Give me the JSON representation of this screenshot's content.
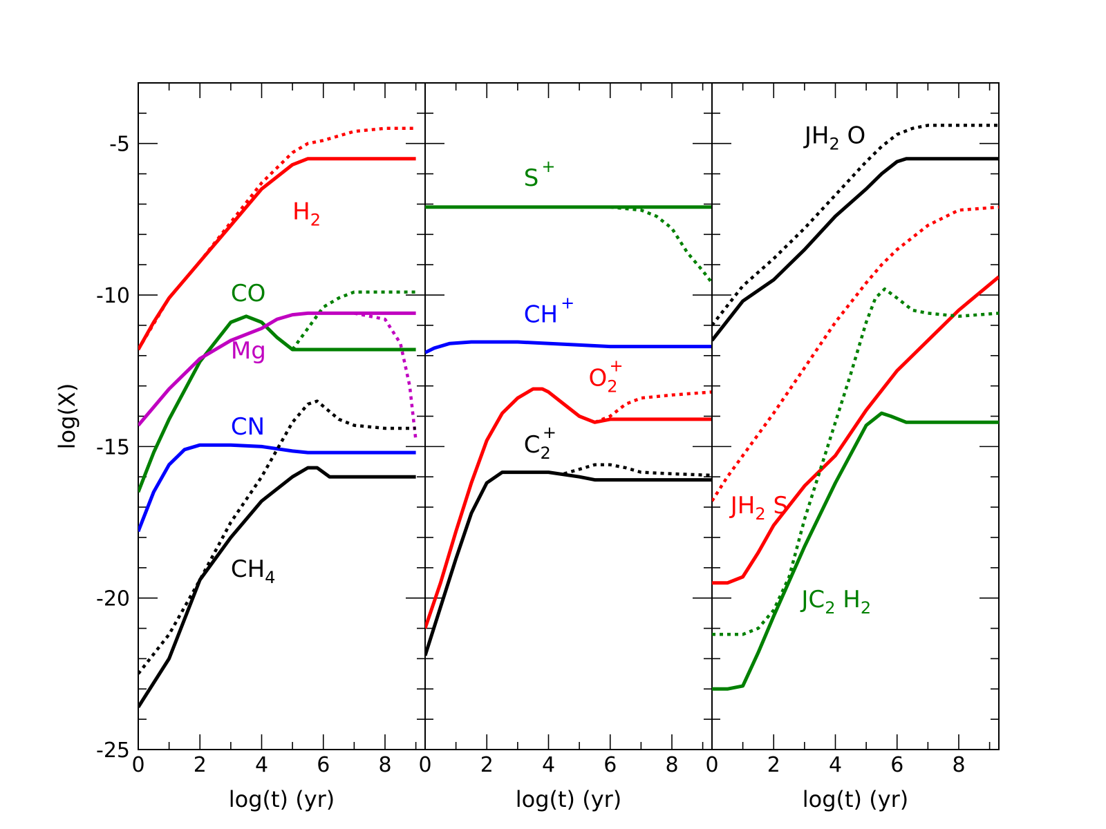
{
  "chart_data": [
    {
      "type": "line",
      "panel": "left",
      "xlabel": "log(t) (yr)",
      "ylabel": "log(X)",
      "xlim": [
        0,
        9.3
      ],
      "ylim": [
        -25,
        -3
      ],
      "xticks": [
        "0",
        "2",
        "4",
        "6",
        "8"
      ],
      "yticks": [
        "-5",
        "-10",
        "-15",
        "-20",
        "-25"
      ],
      "series": [
        {
          "name": "H₂",
          "label": {
            "main": "H",
            "sub": "2",
            "sup": ""
          },
          "color": "#ff0000",
          "style": "solid",
          "x": [
            0,
            0.5,
            1,
            2,
            3,
            4,
            5,
            5.5,
            6,
            7,
            8,
            9
          ],
          "y": [
            -11.8,
            -10.9,
            -10.1,
            -8.9,
            -7.7,
            -6.5,
            -5.7,
            -5.5,
            -5.5,
            -5.5,
            -5.5,
            -5.5
          ]
        },
        {
          "name": "H₂ dotted",
          "color": "#ff0000",
          "style": "dotted",
          "x": [
            0,
            1,
            2,
            3,
            4,
            5,
            5.5,
            6,
            7,
            8,
            9
          ],
          "y": [
            -11.8,
            -10.1,
            -8.9,
            -7.6,
            -6.3,
            -5.3,
            -5.0,
            -4.9,
            -4.6,
            -4.5,
            -4.5
          ]
        },
        {
          "name": "CO",
          "label": {
            "main": "CO",
            "sub": "",
            "sup": ""
          },
          "color": "#008000",
          "style": "solid",
          "x": [
            0,
            0.5,
            1,
            2,
            3,
            3.5,
            4,
            4.5,
            5,
            5.5,
            6,
            7,
            8,
            9
          ],
          "y": [
            -16.5,
            -15.2,
            -14.1,
            -12.2,
            -10.9,
            -10.7,
            -10.9,
            -11.4,
            -11.8,
            -11.8,
            -11.8,
            -11.8,
            -11.8,
            -11.8
          ]
        },
        {
          "name": "CO dotted",
          "color": "#008000",
          "style": "dotted",
          "x": [
            5,
            5.5,
            6,
            6.5,
            7,
            7.5,
            8,
            9
          ],
          "y": [
            -11.8,
            -11.1,
            -10.4,
            -10.1,
            -9.9,
            -9.9,
            -9.9,
            -9.9
          ]
        },
        {
          "name": "Mg",
          "label": {
            "main": "Mg",
            "sub": "",
            "sup": ""
          },
          "color": "#c000c0",
          "style": "solid",
          "x": [
            0,
            1,
            2,
            3,
            4,
            4.5,
            5,
            5.5,
            6,
            7,
            8,
            9
          ],
          "y": [
            -14.3,
            -13.1,
            -12.1,
            -11.5,
            -11.1,
            -10.8,
            -10.65,
            -10.6,
            -10.6,
            -10.6,
            -10.6,
            -10.6
          ]
        },
        {
          "name": "Mg dotted",
          "color": "#c000c0",
          "style": "dotted",
          "x": [
            7,
            8,
            8.5,
            8.8,
            9
          ],
          "y": [
            -10.6,
            -10.8,
            -11.6,
            -13.0,
            -14.8
          ]
        },
        {
          "name": "CN",
          "label": {
            "main": "CN",
            "sub": "",
            "sup": ""
          },
          "color": "#0000ff",
          "style": "solid",
          "x": [
            0,
            0.5,
            1,
            1.5,
            2,
            3,
            4,
            5,
            5.5,
            6,
            7,
            8,
            9
          ],
          "y": [
            -17.8,
            -16.5,
            -15.6,
            -15.1,
            -14.95,
            -14.95,
            -15.0,
            -15.15,
            -15.2,
            -15.2,
            -15.2,
            -15.2,
            -15.2
          ]
        },
        {
          "name": "CH₄",
          "label": {
            "main": "CH",
            "sub": "4",
            "sup": ""
          },
          "color": "#000000",
          "style": "solid",
          "x": [
            0,
            0.5,
            1,
            1.5,
            2,
            3,
            4,
            5,
            5.5,
            5.8,
            6.2,
            7,
            8,
            9
          ],
          "y": [
            -23.6,
            -22.8,
            -22.0,
            -20.7,
            -19.4,
            -18.0,
            -16.8,
            -16.0,
            -15.7,
            -15.7,
            -16.0,
            -16.0,
            -16.0,
            -16.0
          ]
        },
        {
          "name": "CH₄ dotted",
          "color": "#000000",
          "style": "dotted",
          "x": [
            0,
            1,
            2,
            3,
            4,
            5,
            5.5,
            5.8,
            6.5,
            7,
            8,
            9
          ],
          "y": [
            -22.5,
            -21.2,
            -19.4,
            -17.5,
            -16.0,
            -14.2,
            -13.6,
            -13.5,
            -14.1,
            -14.3,
            -14.4,
            -14.4
          ]
        }
      ]
    },
    {
      "type": "line",
      "panel": "middle",
      "xlabel": "log(t) (yr)",
      "xlim": [
        0,
        9.3
      ],
      "ylim": [
        -25,
        -3
      ],
      "xticks": [
        "0",
        "2",
        "4",
        "6",
        "8"
      ],
      "series": [
        {
          "name": "S⁺",
          "label": {
            "main": "S",
            "sub": "",
            "sup": "+"
          },
          "color": "#008000",
          "style": "solid",
          "x": [
            0,
            2,
            4,
            6,
            8,
            9.3
          ],
          "y": [
            -7.1,
            -7.1,
            -7.1,
            -7.1,
            -7.1,
            -7.1
          ]
        },
        {
          "name": "S⁺ dotted",
          "color": "#008000",
          "style": "dotted",
          "x": [
            6,
            7,
            7.5,
            8,
            8.5,
            9,
            9.3
          ],
          "y": [
            -7.1,
            -7.2,
            -7.4,
            -7.8,
            -8.6,
            -9.2,
            -9.6
          ]
        },
        {
          "name": "CH⁺",
          "label": {
            "main": "CH",
            "sub": "",
            "sup": "+"
          },
          "color": "#0000ff",
          "style": "solid",
          "x": [
            0,
            0.3,
            0.8,
            1.5,
            3,
            5,
            6,
            7,
            8,
            9.3
          ],
          "y": [
            -11.9,
            -11.75,
            -11.6,
            -11.55,
            -11.55,
            -11.65,
            -11.7,
            -11.7,
            -11.7,
            -11.7
          ]
        },
        {
          "name": "O₂⁺",
          "label": {
            "main": "O",
            "sub": "2",
            "sup": "+"
          },
          "color": "#ff0000",
          "style": "solid",
          "x": [
            0,
            0.5,
            1,
            1.5,
            2,
            2.5,
            3,
            3.5,
            3.8,
            4,
            4.5,
            5,
            5.5,
            6,
            7,
            8,
            9.3
          ],
          "y": [
            -21.0,
            -19.5,
            -17.8,
            -16.2,
            -14.8,
            -13.9,
            -13.4,
            -13.1,
            -13.1,
            -13.2,
            -13.6,
            -14.0,
            -14.2,
            -14.1,
            -14.1,
            -14.1,
            -14.1
          ]
        },
        {
          "name": "O₂⁺ dotted",
          "color": "#ff0000",
          "style": "dotted",
          "x": [
            5.5,
            6,
            6.5,
            7,
            8,
            9.3
          ],
          "y": [
            -14.2,
            -14.0,
            -13.6,
            -13.4,
            -13.3,
            -13.2
          ]
        },
        {
          "name": "C₂⁺",
          "label": {
            "main": "C",
            "sub": "2",
            "sup": "+"
          },
          "color": "#000000",
          "style": "solid",
          "x": [
            0,
            0.5,
            1,
            1.5,
            2,
            2.5,
            3,
            4,
            5,
            5.5,
            6,
            7,
            8,
            9.3
          ],
          "y": [
            -21.9,
            -20.3,
            -18.7,
            -17.2,
            -16.2,
            -15.85,
            -15.85,
            -15.85,
            -16.0,
            -16.1,
            -16.1,
            -16.1,
            -16.1,
            -16.1
          ]
        },
        {
          "name": "C₂⁺ dotted",
          "color": "#000000",
          "style": "dotted",
          "x": [
            4.5,
            5,
            5.5,
            6,
            6.5,
            7,
            8,
            9.3
          ],
          "y": [
            -15.9,
            -15.75,
            -15.6,
            -15.6,
            -15.7,
            -15.85,
            -15.9,
            -15.95
          ]
        }
      ]
    },
    {
      "type": "line",
      "panel": "right",
      "xlabel": "log(t) (yr)",
      "xlim": [
        0,
        9.3
      ],
      "ylim": [
        -25,
        -3
      ],
      "xticks": [
        "0",
        "2",
        "4",
        "6",
        "8"
      ],
      "series": [
        {
          "name": "JH₂O",
          "label": {
            "main": "JH",
            "sub": "2",
            "sup": "",
            "after": " O"
          },
          "color": "#000000",
          "style": "solid",
          "x": [
            0,
            1,
            2,
            3,
            4,
            5,
            5.5,
            6,
            6.3,
            7,
            8,
            9.3
          ],
          "y": [
            -11.5,
            -10.2,
            -9.5,
            -8.5,
            -7.4,
            -6.5,
            -6.0,
            -5.6,
            -5.5,
            -5.5,
            -5.5,
            -5.5
          ]
        },
        {
          "name": "JH₂O dotted",
          "color": "#000000",
          "style": "dotted",
          "x": [
            0,
            1,
            2,
            3,
            4,
            5,
            5.5,
            6,
            6.5,
            7,
            8,
            9.3
          ],
          "y": [
            -11.0,
            -9.7,
            -8.8,
            -7.8,
            -6.7,
            -5.6,
            -5.1,
            -4.7,
            -4.5,
            -4.4,
            -4.4,
            -4.4
          ]
        },
        {
          "name": "JH₂S",
          "label": {
            "main": "JH",
            "sub": "2",
            "sup": "",
            "after": " S"
          },
          "color": "#ff0000",
          "style": "solid",
          "x": [
            0,
            0.5,
            1,
            1.5,
            2,
            3,
            4,
            5,
            6,
            7,
            8,
            9.3
          ],
          "y": [
            -19.5,
            -19.5,
            -19.3,
            -18.5,
            -17.6,
            -16.3,
            -15.3,
            -13.8,
            -12.5,
            -11.5,
            -10.5,
            -9.4
          ]
        },
        {
          "name": "JH₂S dotted",
          "color": "#ff0000",
          "style": "dotted",
          "x": [
            0,
            0.5,
            1,
            2,
            3,
            4,
            5,
            5.5,
            6,
            7,
            8,
            9.3
          ],
          "y": [
            -16.8,
            -16.0,
            -15.3,
            -13.9,
            -12.4,
            -10.9,
            -9.6,
            -9.0,
            -8.5,
            -7.7,
            -7.2,
            -7.1
          ]
        },
        {
          "name": "JC₂H₂",
          "label": {
            "main": "JC",
            "sub": "2",
            "sup": "",
            "after": " H",
            "sub2": "2"
          },
          "color": "#008000",
          "style": "solid",
          "x": [
            0,
            0.5,
            1,
            1.5,
            2,
            3,
            4,
            5,
            5.5,
            5.8,
            6.3,
            7,
            8,
            9.3
          ],
          "y": [
            -23.0,
            -23.0,
            -22.9,
            -21.8,
            -20.6,
            -18.3,
            -16.2,
            -14.3,
            -13.9,
            -14.0,
            -14.2,
            -14.2,
            -14.2,
            -14.2
          ]
        },
        {
          "name": "JC₂H₂ dotted",
          "color": "#008000",
          "style": "dotted",
          "x": [
            0,
            0.5,
            1,
            1.5,
            2,
            2.5,
            3,
            3.5,
            4,
            4.5,
            5,
            5.3,
            5.6,
            6,
            6.5,
            7,
            8,
            9.3
          ],
          "y": [
            -21.2,
            -21.2,
            -21.2,
            -21.0,
            -20.4,
            -19.3,
            -17.4,
            -15.8,
            -14.2,
            -12.6,
            -10.9,
            -10.1,
            -9.8,
            -10.1,
            -10.5,
            -10.6,
            -10.7,
            -10.6
          ]
        }
      ]
    }
  ]
}
